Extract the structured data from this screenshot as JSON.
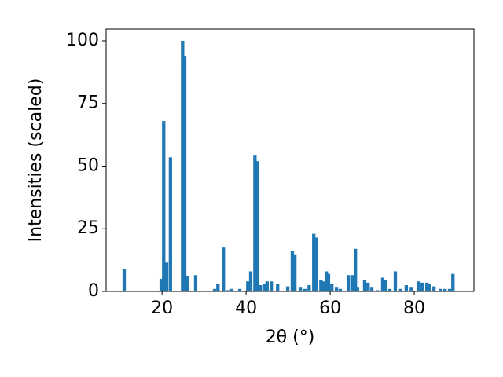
{
  "chart_data": {
    "type": "bar",
    "xlabel": "2θ (°)",
    "ylabel": "Intensities (scaled)",
    "x": [
      11.0,
      19.8,
      20.4,
      21.1,
      22.0,
      24.9,
      25.4,
      26.0,
      28.0,
      32.5,
      33.3,
      34.6,
      35.7,
      36.6,
      38.5,
      40.4,
      41.1,
      42.1,
      42.6,
      43.4,
      44.5,
      45.0,
      46.0,
      47.5,
      49.9,
      51.0,
      51.6,
      52.9,
      54.0,
      55.0,
      56.1,
      56.6,
      57.8,
      58.5,
      59.1,
      59.6,
      60.4,
      61.5,
      62.4,
      64.3,
      65.2,
      66.0,
      66.5,
      68.2,
      69.0,
      69.9,
      71.2,
      72.5,
      73.1,
      74.2,
      75.5,
      76.8,
      78.1,
      79.3,
      81.1,
      81.9,
      83.0,
      83.7,
      84.7,
      86.2,
      87.3,
      88.4,
      89.2
    ],
    "values": [
      9,
      5,
      68,
      11.5,
      53.5,
      100,
      94,
      6,
      6.5,
      1,
      3,
      17.5,
      0.5,
      1,
      1,
      4,
      8,
      54.5,
      52,
      2.5,
      3,
      4,
      4,
      3,
      2,
      16,
      14.5,
      1.5,
      1,
      2.5,
      23,
      21.5,
      4.5,
      4,
      8,
      7,
      3,
      1.5,
      1,
      6.5,
      6.5,
      17,
      1.5,
      4.5,
      3.5,
      1.5,
      0.5,
      5.5,
      4.5,
      1,
      8,
      1,
      2.5,
      1.5,
      4,
      3.5,
      3.5,
      3,
      2,
      1,
      1,
      1,
      7
    ],
    "color": "#1f77b4",
    "xlim": [
      6.7,
      94.2
    ],
    "xticks": [
      20,
      40,
      60,
      80
    ],
    "ylim": [
      0,
      104.7
    ],
    "yticks": [
      0,
      25,
      50,
      75,
      100
    ],
    "grid": false
  }
}
